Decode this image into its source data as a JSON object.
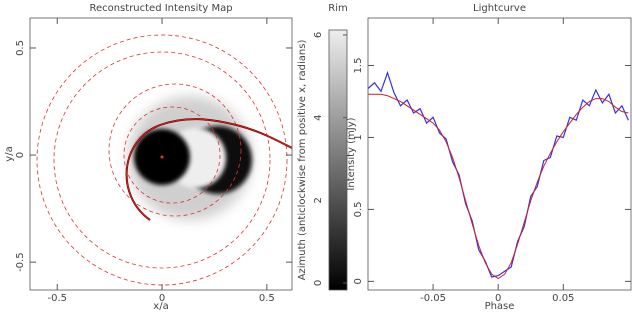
{
  "chart_data": [
    {
      "type": "image",
      "title": "Reconstructed Intensity Map",
      "xlabel": "x/a",
      "ylabel": "y/a",
      "xlim": [
        -0.63,
        0.62
      ],
      "ylim": [
        -0.63,
        0.64
      ],
      "xticks": [
        -0.5,
        0,
        0.5
      ],
      "yticks": [
        -0.5,
        0,
        0.5
      ]
    },
    {
      "type": "colorbar",
      "title": "Rim",
      "ylabel": "Azimuth (anticlockwise from positive x, radians)",
      "ylim": [
        -0.17,
        6.12
      ],
      "yticks": [
        0,
        2,
        4,
        6
      ]
    },
    {
      "type": "line",
      "title": "Lightcurve",
      "xlabel": "Phase",
      "ylabel": "Intensity (mJy)",
      "xlim": [
        -0.1,
        0.102
      ],
      "ylim": [
        -0.06,
        1.83
      ],
      "xticks": [
        -0.05,
        0,
        0.05
      ],
      "yticks": [
        0,
        0.5,
        1,
        1.5
      ],
      "x": [
        -0.1,
        -0.095,
        -0.09,
        -0.085,
        -0.08,
        -0.075,
        -0.07,
        -0.065,
        -0.06,
        -0.055,
        -0.05,
        -0.045,
        -0.04,
        -0.035,
        -0.03,
        -0.025,
        -0.02,
        -0.015,
        -0.01,
        -0.005,
        0,
        0.005,
        0.01,
        0.015,
        0.02,
        0.025,
        0.03,
        0.035,
        0.04,
        0.045,
        0.05,
        0.055,
        0.06,
        0.065,
        0.07,
        0.075,
        0.08,
        0.085,
        0.09,
        0.095,
        0.1
      ],
      "series": [
        {
          "color": "#3030ee",
          "values": [
            1.34,
            1.38,
            1.32,
            1.45,
            1.31,
            1.22,
            1.26,
            1.17,
            1.2,
            1.1,
            1.14,
            1.03,
            0.99,
            0.83,
            0.74,
            0.54,
            0.42,
            0.22,
            0.14,
            0.03,
            0.04,
            0.07,
            0.1,
            0.28,
            0.38,
            0.59,
            0.66,
            0.84,
            0.86,
            1.01,
            1,
            1.14,
            1.12,
            1.26,
            1.22,
            1.33,
            1.24,
            1.3,
            1.17,
            1.22,
            1.12
          ]
        },
        {
          "color": "#d02020",
          "values": [
            1.3,
            1.3,
            1.3,
            1.29,
            1.27,
            1.25,
            1.22,
            1.19,
            1.16,
            1.13,
            1.1,
            1.05,
            0.97,
            0.86,
            0.72,
            0.56,
            0.4,
            0.25,
            0.13,
            0.05,
            0.02,
            0.05,
            0.13,
            0.26,
            0.41,
            0.56,
            0.69,
            0.8,
            0.89,
            0.97,
            1.04,
            1.1,
            1.16,
            1.21,
            1.25,
            1.27,
            1.27,
            1.25,
            1.21,
            1.18,
            1.17
          ]
        }
      ]
    }
  ]
}
